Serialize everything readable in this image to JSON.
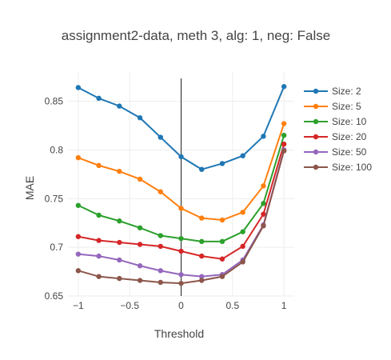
{
  "chart_data": {
    "type": "line",
    "title": "assignment2-data, meth 3, alg: 1, neg: False",
    "xlabel": "Threshold",
    "ylabel": "MAE",
    "xlim": [
      -1.1,
      1.1
    ],
    "ylim": [
      0.65,
      0.88
    ],
    "xticks": [
      -1,
      -0.5,
      0,
      0.5,
      1
    ],
    "xtick_labels": [
      "−1",
      "−0.5",
      "0",
      "0.5",
      "1"
    ],
    "yticks": [
      0.65,
      0.7,
      0.75,
      0.8,
      0.85
    ],
    "ytick_labels": [
      "0.65",
      "0.7",
      "0.75",
      "0.8",
      "0.85"
    ],
    "grid": true,
    "legend_position": "top-right",
    "x": [
      -1,
      -0.8,
      -0.6,
      -0.4,
      -0.2,
      0,
      0.2,
      0.4,
      0.6,
      0.8,
      1
    ],
    "series": [
      {
        "name": "Size: 2",
        "color": "#1f77b4",
        "values": [
          0.864,
          0.853,
          0.845,
          0.833,
          0.813,
          0.793,
          0.78,
          0.786,
          0.794,
          0.814,
          0.865
        ]
      },
      {
        "name": "Size: 5",
        "color": "#ff7f0e",
        "values": [
          0.792,
          0.784,
          0.778,
          0.77,
          0.757,
          0.74,
          0.73,
          0.728,
          0.736,
          0.763,
          0.827
        ]
      },
      {
        "name": "Size: 10",
        "color": "#2ca02c",
        "values": [
          0.743,
          0.733,
          0.727,
          0.72,
          0.712,
          0.709,
          0.706,
          0.706,
          0.716,
          0.745,
          0.815
        ]
      },
      {
        "name": "Size: 20",
        "color": "#d62728",
        "values": [
          0.711,
          0.707,
          0.705,
          0.703,
          0.701,
          0.696,
          0.691,
          0.688,
          0.701,
          0.734,
          0.806
        ]
      },
      {
        "name": "Size: 50",
        "color": "#9467bd",
        "values": [
          0.693,
          0.691,
          0.687,
          0.681,
          0.676,
          0.672,
          0.67,
          0.672,
          0.687,
          0.723,
          0.8
        ]
      },
      {
        "name": "Size: 100",
        "color": "#8c564b",
        "values": [
          0.676,
          0.67,
          0.668,
          0.666,
          0.664,
          0.663,
          0.666,
          0.67,
          0.685,
          0.722,
          0.799
        ]
      }
    ]
  }
}
